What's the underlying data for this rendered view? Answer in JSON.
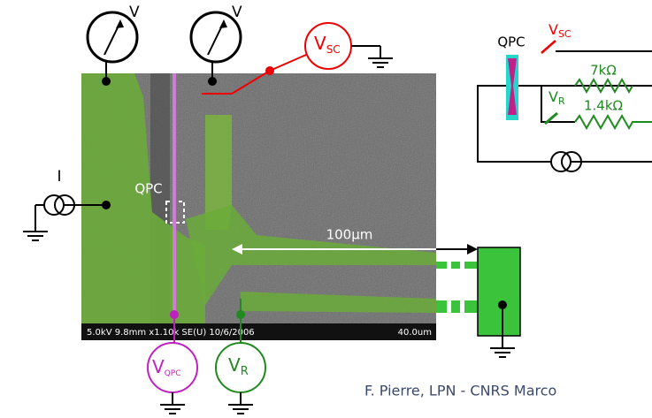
{
  "voltmeters": [
    {
      "label": "V"
    },
    {
      "label": "V"
    }
  ],
  "sources": {
    "vsc": {
      "symbol": "V",
      "subscript": "SC"
    },
    "current": "I",
    "vqpc": {
      "symbol": "V",
      "subscript": "QPC"
    },
    "vr": {
      "symbol": "V",
      "subscript": "R"
    }
  },
  "sem_image": {
    "qpc_label": "QPC",
    "scale_label": "100µm",
    "info_bar": "5.0kV 9.8mm x1.10k SE(U) 10/6/2006",
    "scale_bar": "40.0um"
  },
  "circuit": {
    "qpc_label": "QPC",
    "vsc": {
      "symbol": "V",
      "subscript": "SC"
    },
    "vr": {
      "symbol": "V",
      "subscript": "R"
    },
    "r1": "7kΩ",
    "r2": "1.4kΩ"
  },
  "footer": "F. Pierre, LPN - CNRS Marco"
}
